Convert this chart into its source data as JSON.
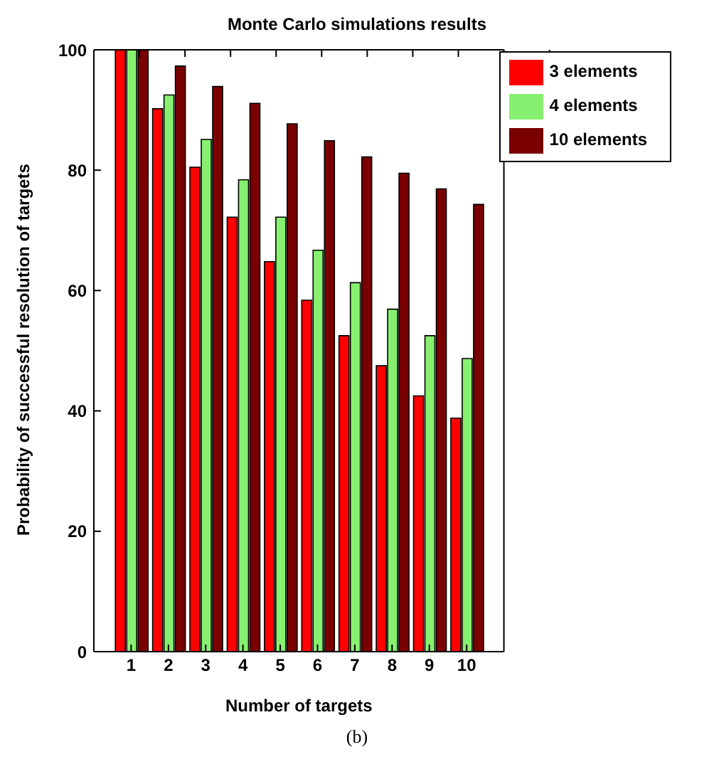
{
  "chart_data": {
    "type": "bar",
    "title": "Monte Carlo simulations results",
    "xlabel": "Number of targets",
    "ylabel": "Probability of successful resolution of targets",
    "x": [
      1,
      2,
      3,
      4,
      5,
      6,
      7,
      8,
      9,
      10
    ],
    "series": [
      {
        "name": "3 elements",
        "color": "#ff0000",
        "values": [
          100,
          90.2,
          80.5,
          72.2,
          64.8,
          58.4,
          52.5,
          47.5,
          42.5,
          38.8
        ]
      },
      {
        "name": "4 elements",
        "color": "#88f070",
        "values": [
          100,
          92.5,
          85.1,
          78.4,
          72.2,
          66.7,
          61.3,
          56.9,
          52.5,
          48.7
        ]
      },
      {
        "name": "10 elements",
        "color": "#7a0000",
        "values": [
          100,
          97.3,
          93.9,
          91.1,
          87.7,
          84.9,
          82.2,
          79.5,
          76.9,
          74.3
        ]
      }
    ],
    "xlim": [
      0,
      11
    ],
    "xticks": [
      1,
      2,
      3,
      4,
      5,
      6,
      7,
      8,
      9,
      10
    ],
    "ylim": [
      0,
      100
    ],
    "yticks": [
      0,
      20,
      40,
      60,
      80,
      100
    ],
    "grid": false,
    "legend": "top right",
    "annotations": [
      "(b)"
    ]
  }
}
